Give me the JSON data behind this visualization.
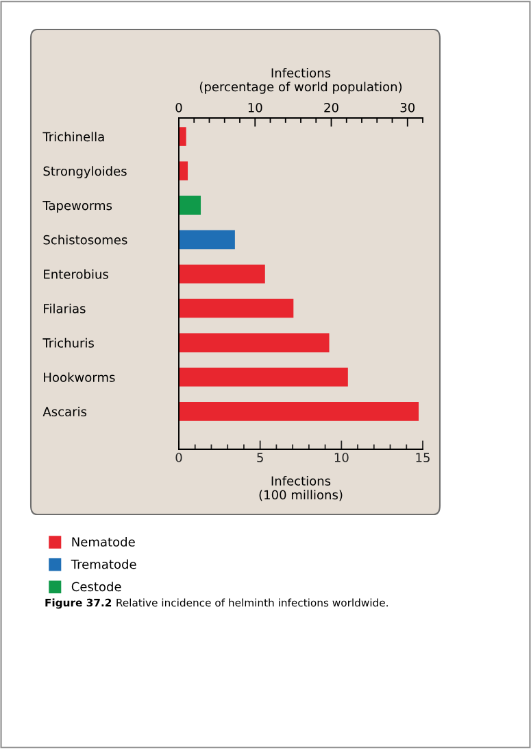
{
  "chart_data": {
    "type": "bar",
    "orientation": "horizontal",
    "categories": [
      "Trichinella",
      "Strongyloides",
      "Tapeworms",
      "Schistosomes",
      "Enterobius",
      "Filarias",
      "Trichuris",
      "Hookworms",
      "Ascaris"
    ],
    "series": [
      {
        "name": "Nematode",
        "color": "#e8262f",
        "values": [
          0.45,
          0.55,
          null,
          null,
          5.3,
          7.05,
          9.25,
          10.4,
          14.75
        ]
      },
      {
        "name": "Trematode",
        "color": "#1f6fb5",
        "values": [
          null,
          null,
          null,
          3.45,
          null,
          null,
          null,
          null,
          null
        ]
      },
      {
        "name": "Cestode",
        "color": "#109a4a",
        "values": [
          null,
          null,
          1.35,
          null,
          null,
          null,
          null,
          null,
          null
        ]
      }
    ],
    "xlabel": "Infections\n(100 millions)",
    "xlim": [
      0,
      15
    ],
    "xticks": [
      0,
      5,
      10,
      15
    ],
    "x2label": "Infections\n(percentage of world population)",
    "x2lim": [
      0,
      32
    ],
    "x2ticks": [
      0,
      10,
      20,
      30
    ],
    "legend": "bottom left",
    "grid": false,
    "annotations": [
      "Figure 37.2",
      "Relative incidence of helminth infections worldwide."
    ]
  }
}
